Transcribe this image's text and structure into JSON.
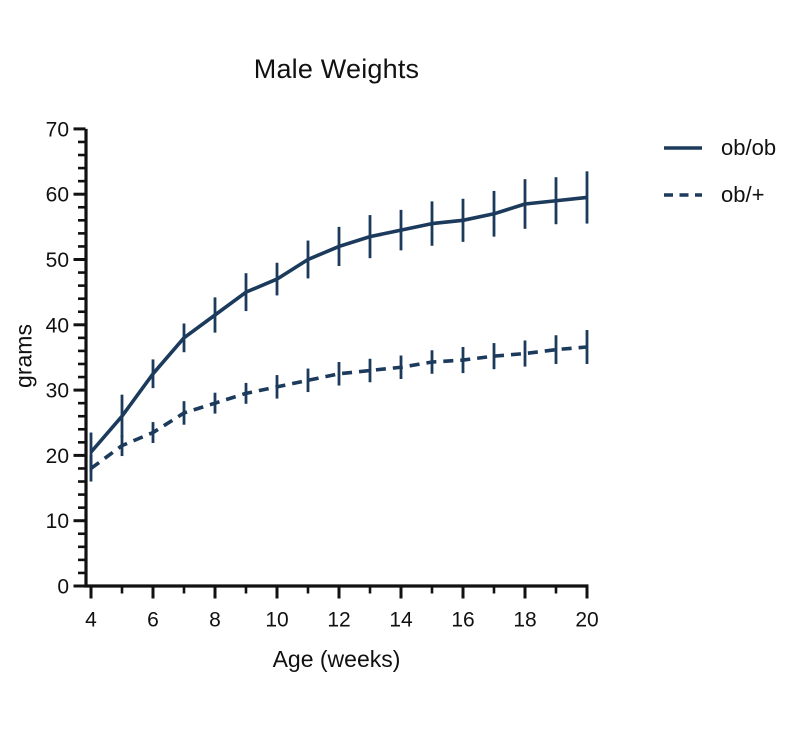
{
  "chart_data": {
    "type": "line",
    "title": "Male Weights",
    "xlabel": "Age (weeks)",
    "ylabel": "grams",
    "xlim": [
      4,
      20
    ],
    "ylim": [
      0,
      70
    ],
    "grid": false,
    "error_bars": true,
    "legend_position": "right-outside",
    "colors": {
      "line": "#1b3a5c",
      "axis": "#111111",
      "background": "#ffffff"
    },
    "x": [
      4,
      5,
      6,
      7,
      8,
      9,
      10,
      11,
      12,
      13,
      14,
      15,
      16,
      17,
      18,
      19,
      20
    ],
    "xticks_major": [
      4,
      6,
      8,
      10,
      12,
      14,
      16,
      18,
      20
    ],
    "xticks_minor": [
      5,
      7,
      9,
      11,
      13,
      15,
      17,
      19
    ],
    "yticks_major": [
      0,
      10,
      20,
      30,
      40,
      50,
      60,
      70
    ],
    "yticks_minor_step": 2,
    "series": [
      {
        "name": "ob/ob",
        "line_style": "solid",
        "values": [
          20.5,
          26,
          32.5,
          38,
          41.5,
          45,
          47,
          50,
          52,
          53.5,
          54.5,
          55.5,
          56,
          57,
          58.5,
          59,
          59.5
        ],
        "errors": [
          3,
          3.3,
          2.2,
          2.2,
          2.7,
          2.9,
          2.5,
          2.9,
          3,
          3.3,
          3.1,
          3.4,
          3.3,
          3.5,
          3.8,
          3.6,
          4
        ]
      },
      {
        "name": "ob/+",
        "line_style": "dashed",
        "values": [
          18,
          21.5,
          23.5,
          26.5,
          28,
          29.5,
          30.5,
          31.5,
          32.5,
          33,
          33.5,
          34.3,
          34.6,
          35.2,
          35.6,
          36.2,
          36.6
        ],
        "errors": [
          2,
          1.6,
          1.6,
          1.8,
          1.6,
          1.6,
          1.8,
          1.8,
          1.8,
          1.8,
          1.8,
          1.8,
          2,
          2,
          2,
          2.2,
          2.6
        ]
      }
    ]
  }
}
